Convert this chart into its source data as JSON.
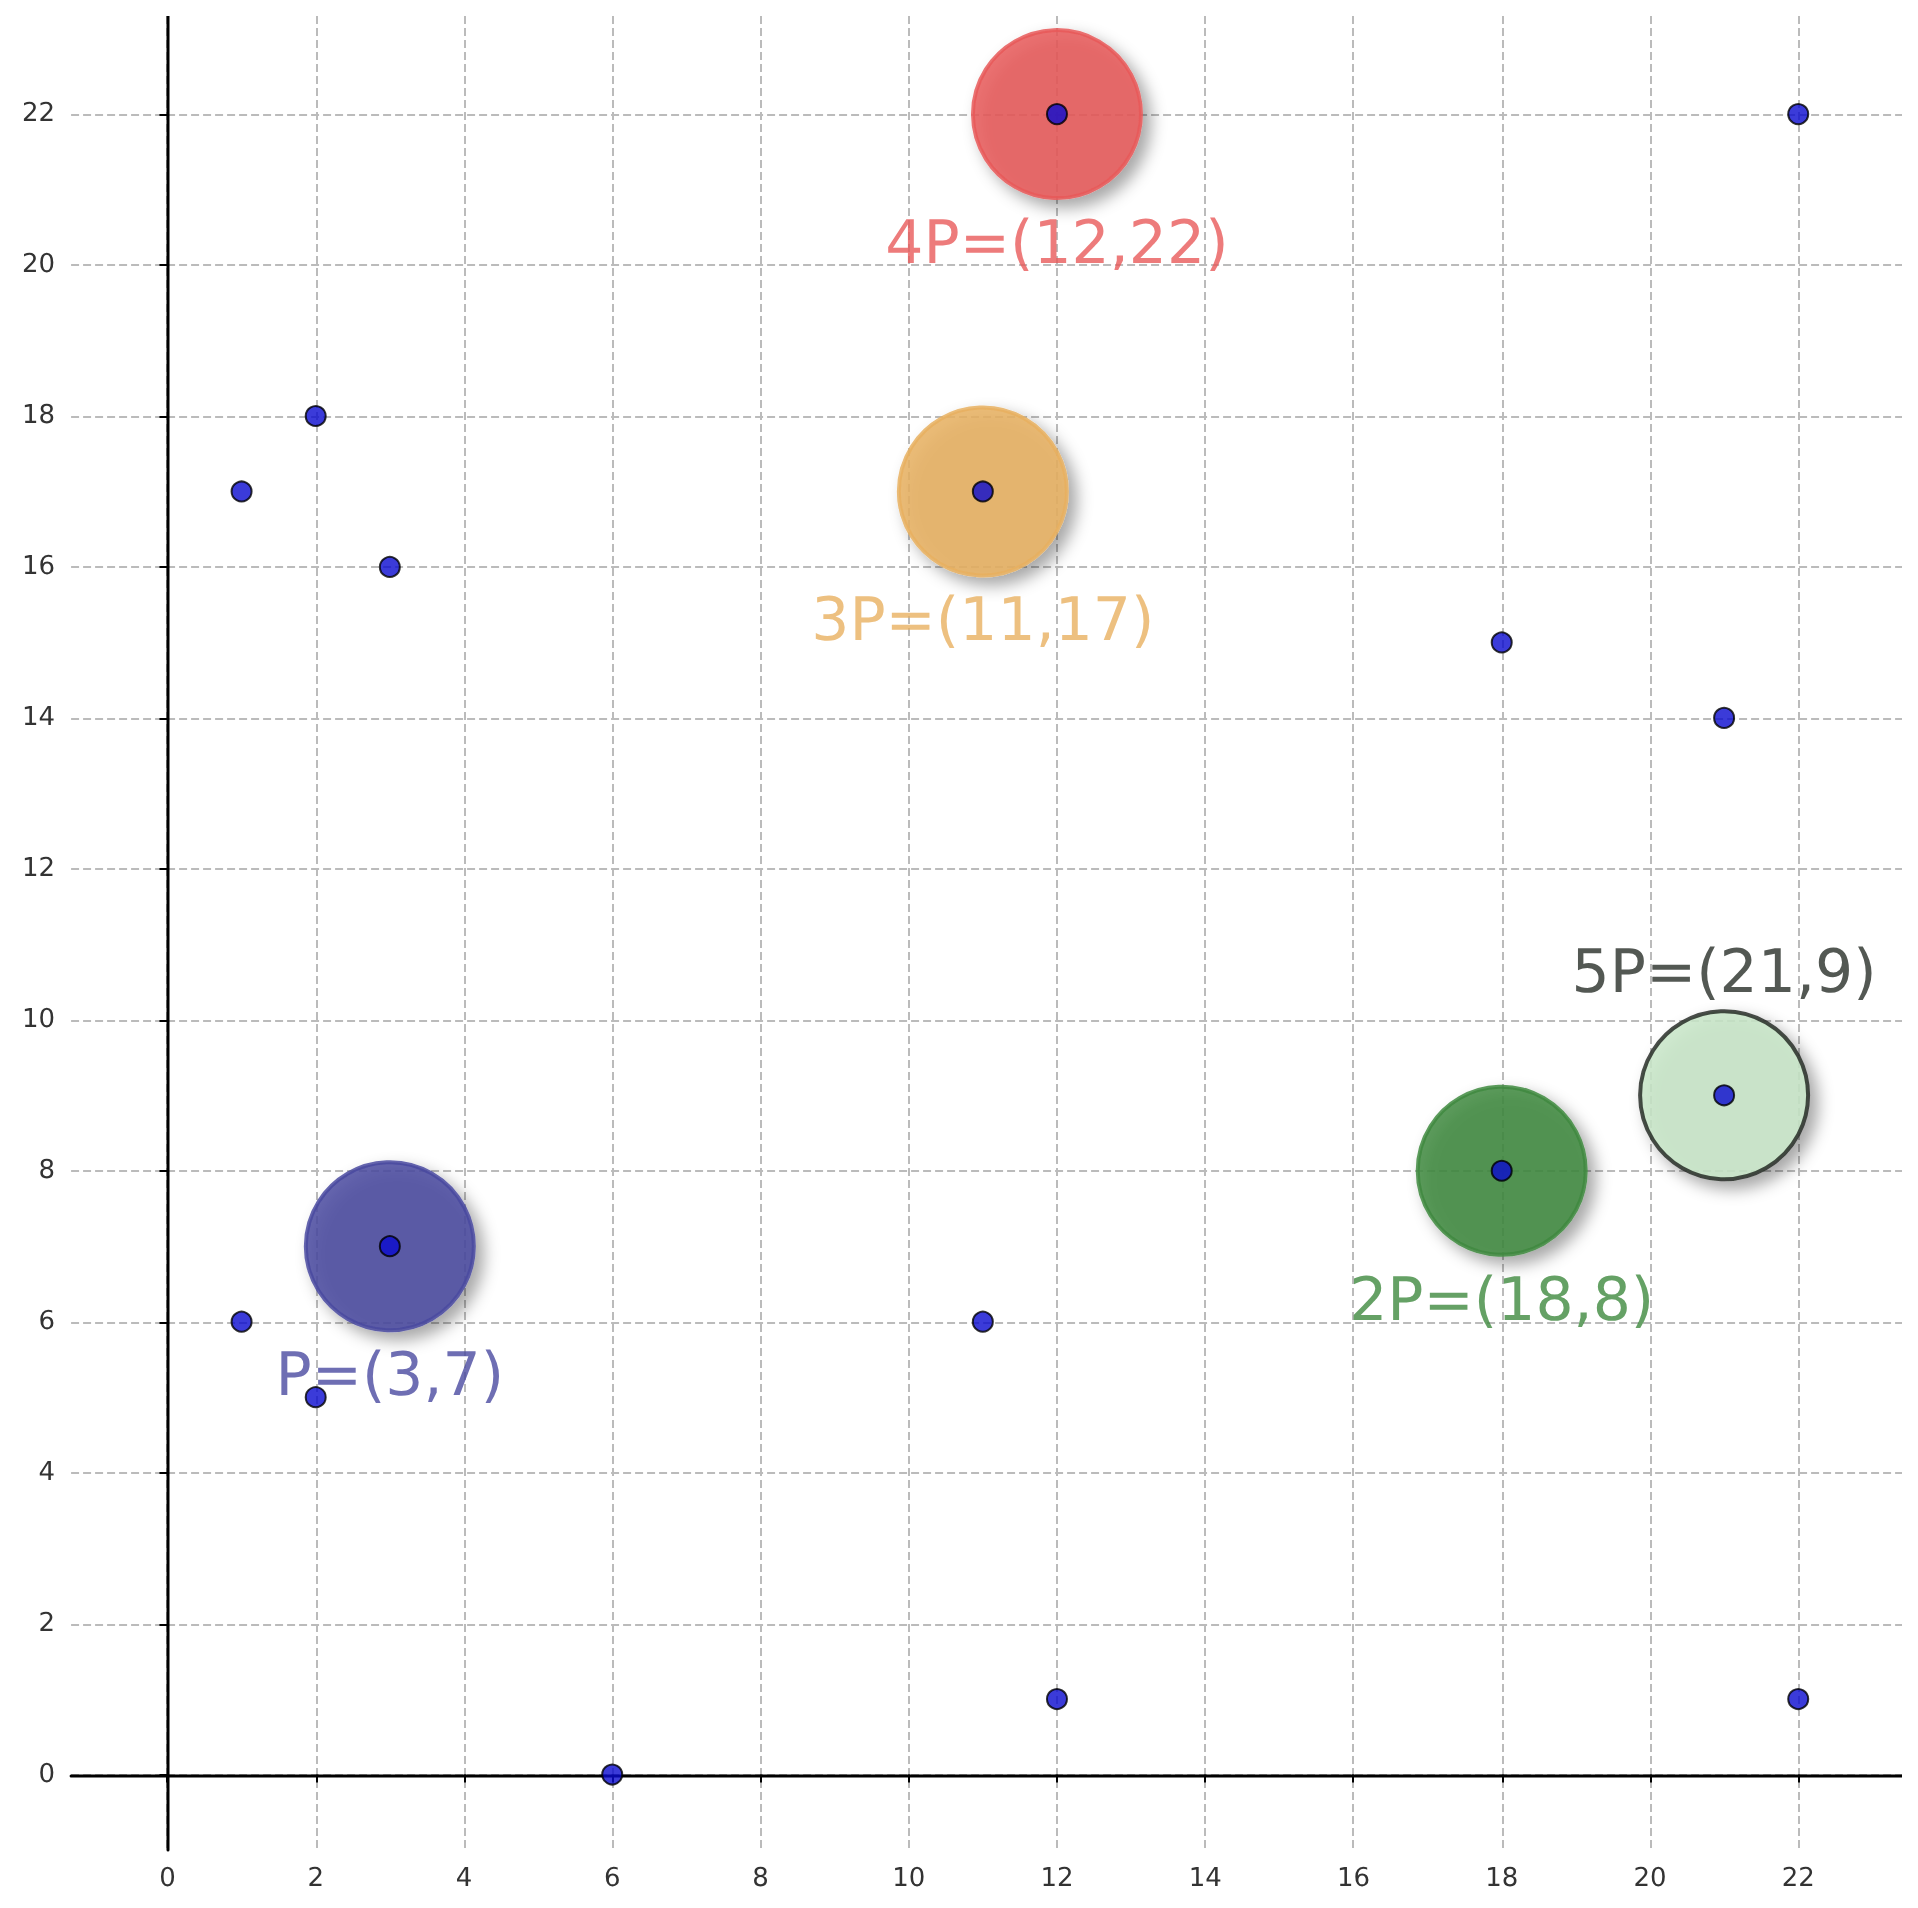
{
  "chart_data": {
    "type": "scatter",
    "xlim": [
      -1.3,
      23.4
    ],
    "ylim": [
      -1,
      23.3
    ],
    "xticks": [
      0,
      2,
      4,
      6,
      8,
      10,
      12,
      14,
      16,
      18,
      20,
      22
    ],
    "yticks": [
      0,
      2,
      4,
      6,
      8,
      10,
      12,
      14,
      16,
      18,
      20,
      22
    ],
    "grid": true,
    "marker": "circle",
    "series": [
      {
        "type": "bubble",
        "x": [
          3,
          18,
          11,
          12,
          21
        ],
        "values": [
          7,
          8,
          17,
          22,
          9
        ],
        "sizes": [
          1,
          1,
          1,
          1,
          1
        ],
        "colors": [
          "#4a4aa0",
          "#3f8a3f",
          "#e8b060",
          "#e85a5a",
          "#c8e6c8"
        ]
      },
      {
        "color": "#0a0ad0",
        "x": [
          1,
          1,
          2,
          2,
          3,
          3,
          6,
          11,
          11,
          12,
          12,
          18,
          18,
          21,
          21,
          22,
          22
        ],
        "values": [
          17,
          6,
          18,
          5,
          16,
          7,
          0,
          6,
          17,
          1,
          22,
          15,
          8,
          14,
          9,
          22,
          1
        ]
      }
    ],
    "annotations": [
      {
        "text": "P=(3,7)",
        "x": 3,
        "y": 7
      },
      {
        "text": "2P=(18,8)",
        "x": 18,
        "y": 8
      },
      {
        "text": "3P=(11,17)",
        "x": 11,
        "y": 17
      },
      {
        "text": "4P=(12,22)",
        "x": 12,
        "y": 22
      },
      {
        "text": "5P=(21,9)",
        "x": 21,
        "y": 9
      }
    ]
  }
}
